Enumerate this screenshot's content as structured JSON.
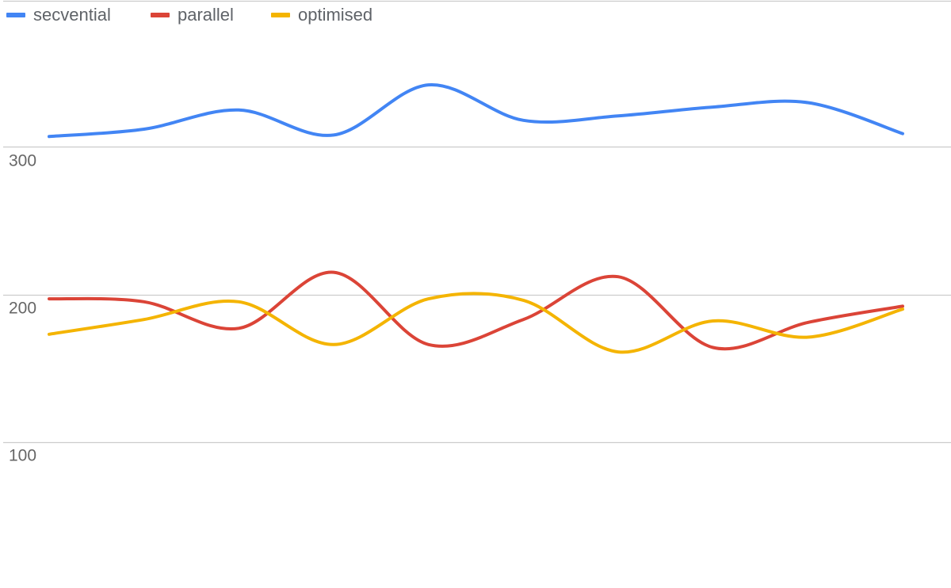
{
  "chart_data": {
    "type": "line",
    "title": "",
    "xlabel": "",
    "ylabel": "",
    "legend_position": "top-left",
    "grid": true,
    "ylim": [
      1,
      399
    ],
    "y_ticks": [
      100,
      200,
      300
    ],
    "x": [
      1,
      2,
      3,
      4,
      5,
      6,
      7,
      8,
      9,
      10
    ],
    "series": [
      {
        "name": "secvential",
        "color": "#4285F4",
        "values": [
          307,
          312,
          325,
          308,
          342,
          318,
          321,
          327,
          330,
          309
        ]
      },
      {
        "name": "parallel",
        "color": "#DB4437",
        "values": [
          197,
          195,
          177,
          215,
          166,
          183,
          212,
          164,
          181,
          192
        ]
      },
      {
        "name": "optimised",
        "color": "#F4B400",
        "values": [
          173,
          183,
          195,
          166,
          197,
          196,
          161,
          182,
          171,
          190
        ]
      }
    ]
  }
}
